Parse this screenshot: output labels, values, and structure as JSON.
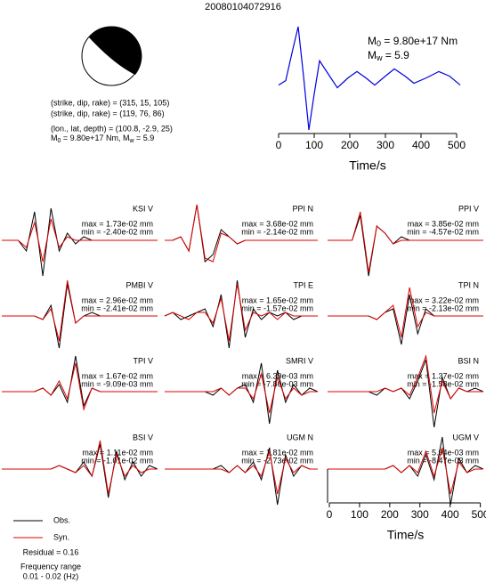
{
  "title": "20080104072916",
  "source_info": {
    "lines": [
      "(strike, dip, rake) = (315, 15, 105)",
      "(strike, dip, rake) = (119, 76, 86)",
      "(lon., lat, depth) = (100.8, -2.9, 25)"
    ],
    "moment_line": {
      "m": "M",
      "m_sub": "0",
      "m_rest": " = 9.80e+17 Nm, ",
      "w": "M",
      "w_sub": "w",
      "w_rest": " = 5.9"
    }
  },
  "moment_box": {
    "m": "M",
    "m_sub": "0",
    "m_rest": " = 9.80e+17 Nm",
    "w": "M",
    "w_sub": "w",
    "w_rest": " = 5.9"
  },
  "residual": "Residual = 0.16",
  "frequency_title": "Frequency range",
  "frequency_range": "0.01 - 0.02 (Hz)",
  "chart_data": [
    {
      "type": "line",
      "x": [
        0,
        20,
        40,
        55,
        70,
        85,
        100,
        115,
        140,
        165,
        195,
        220,
        245,
        270,
        300,
        325,
        355,
        380,
        415,
        450,
        480,
        510
      ],
      "values": [
        0,
        5,
        40,
        65,
        10,
        -50,
        -10,
        27,
        12,
        -3,
        8,
        15,
        8,
        0,
        10,
        18,
        10,
        2,
        8,
        15,
        10,
        0
      ],
      "color": "#0000dd",
      "xlim": [
        0,
        500
      ],
      "ylim": [
        -52,
        67
      ],
      "xticks": [
        0,
        100,
        200,
        300,
        400,
        500
      ],
      "xlabel": "Time/s"
    },
    {
      "type": "waveform",
      "name": "KSI V",
      "max": "max = 1.73e-02 mm",
      "min": "min = -2.40e-02 mm",
      "ylim": [
        -12,
        12
      ],
      "series": [
        {
          "name": "Obs.",
          "color": "#000000",
          "values": [
            0,
            0,
            0,
            -3,
            8,
            -10,
            9,
            -3,
            2,
            -1,
            1,
            0,
            0,
            0,
            0,
            0,
            0,
            0,
            0,
            0
          ]
        },
        {
          "name": "Syn.",
          "color": "#dd0000",
          "values": [
            0,
            0,
            0,
            -2,
            5,
            -6,
            6,
            -2,
            1,
            0,
            0,
            0,
            0,
            0,
            0,
            0,
            0,
            0,
            0,
            0
          ]
        }
      ]
    },
    {
      "type": "waveform",
      "name": "PPI N",
      "max": "max = 3.68e-02 mm",
      "min": "min = -2.14e-02 mm",
      "ylim": [
        -12,
        12
      ],
      "series": [
        {
          "name": "Obs.",
          "color": "#000000",
          "values": [
            0,
            0,
            1,
            -3,
            10,
            -6,
            -4,
            3,
            1,
            -1,
            0,
            0,
            0,
            0,
            0,
            0,
            0,
            0,
            0,
            0
          ]
        },
        {
          "name": "Syn.",
          "color": "#dd0000",
          "values": [
            0,
            0,
            1,
            -3,
            10,
            -5,
            -6,
            2,
            1,
            -1,
            0,
            0,
            0,
            0,
            0,
            0,
            0,
            0,
            0,
            0
          ]
        }
      ]
    },
    {
      "type": "waveform",
      "name": "PPI V",
      "max": "max = 3.85e-02 mm",
      "min": "min = -4.57e-02 mm",
      "ylim": [
        -12,
        12
      ],
      "series": [
        {
          "name": "Obs.",
          "color": "#000000",
          "values": [
            0,
            0,
            0,
            0,
            7,
            -10,
            4,
            2,
            -1,
            1,
            0,
            0,
            0,
            0,
            0,
            0,
            0,
            0,
            0,
            0
          ]
        },
        {
          "name": "Syn.",
          "color": "#dd0000",
          "values": [
            0,
            0,
            0,
            0,
            8,
            -9,
            4,
            2,
            -1,
            0,
            0,
            0,
            0,
            0,
            0,
            0,
            0,
            0,
            0,
            0
          ]
        }
      ]
    },
    {
      "type": "waveform",
      "name": "PMBI V",
      "max": "max = 2.96e-02 mm",
      "min": "min = -2.41e-02 mm",
      "ylim": [
        -12,
        12
      ],
      "series": [
        {
          "name": "Obs.",
          "color": "#000000",
          "values": [
            0,
            0,
            0,
            0,
            0,
            -1,
            3,
            -9,
            9,
            -2,
            0,
            1,
            0,
            0,
            0,
            0,
            0,
            0,
            0,
            0
          ]
        },
        {
          "name": "Syn.",
          "color": "#dd0000",
          "values": [
            0,
            0,
            0,
            0,
            0,
            -1,
            2,
            -7,
            10,
            -2,
            0,
            0,
            0,
            0,
            0,
            0,
            0,
            0,
            0,
            0
          ]
        }
      ]
    },
    {
      "type": "waveform",
      "name": "TPI E",
      "max": "max = 1.65e-02 mm",
      "min": "min = -1.57e-02 mm",
      "ylim": [
        -12,
        12
      ],
      "series": [
        {
          "name": "Obs.",
          "color": "#000000",
          "values": [
            0,
            1,
            -1,
            0,
            1,
            2,
            -3,
            6,
            -9,
            10,
            -6,
            2,
            -1,
            1,
            0,
            1,
            -1,
            0,
            0,
            0
          ]
        },
        {
          "name": "Syn.",
          "color": "#dd0000",
          "values": [
            0,
            1,
            0,
            -1,
            1,
            1,
            -2,
            5,
            -7,
            9,
            -4,
            1,
            0,
            1,
            -1,
            1,
            0,
            0,
            0,
            0
          ]
        }
      ]
    },
    {
      "type": "waveform",
      "name": "TPI N",
      "max": "max = 3.22e-02 mm",
      "min": "min = -2.13e-02 mm",
      "ylim": [
        -12,
        12
      ],
      "series": [
        {
          "name": "Obs.",
          "color": "#000000",
          "values": [
            0,
            0,
            0,
            0,
            0,
            0,
            -1,
            1,
            2,
            -8,
            6,
            -5,
            2,
            0,
            0,
            0,
            0,
            0,
            0,
            0
          ]
        },
        {
          "name": "Syn.",
          "color": "#dd0000",
          "values": [
            0,
            0,
            0,
            0,
            0,
            0,
            -1,
            1,
            3,
            -6,
            8,
            -3,
            1,
            0,
            0,
            0,
            0,
            0,
            0,
            0
          ]
        }
      ]
    },
    {
      "type": "waveform",
      "name": "TPI V",
      "max": "max = 1.67e-02 mm",
      "min": "min = -9.09e-03 mm",
      "ylim": [
        -12,
        12
      ],
      "series": [
        {
          "name": "Obs.",
          "color": "#000000",
          "values": [
            0,
            0,
            0,
            0,
            0,
            1,
            -1,
            2,
            -3,
            10,
            -4,
            1,
            0,
            0,
            0,
            0,
            0,
            0,
            0,
            0
          ]
        },
        {
          "name": "Syn.",
          "color": "#dd0000",
          "values": [
            0,
            0,
            0,
            0,
            0,
            1,
            -1,
            3,
            -2,
            8,
            -5,
            1,
            0,
            0,
            0,
            0,
            0,
            0,
            0,
            0
          ]
        }
      ]
    },
    {
      "type": "waveform",
      "name": "SMRI V",
      "max": "max = 6.39e-03 mm",
      "min": "min = -7.86e-03 mm",
      "ylim": [
        -12,
        12
      ],
      "series": [
        {
          "name": "Obs.",
          "color": "#000000",
          "values": [
            0,
            0,
            0,
            0,
            0,
            0,
            -1,
            1,
            -1,
            1,
            2,
            -3,
            8,
            -9,
            6,
            -3,
            2,
            -1,
            1,
            0
          ]
        },
        {
          "name": "Syn.",
          "color": "#dd0000",
          "values": [
            0,
            0,
            0,
            0,
            0,
            0,
            0,
            1,
            -1,
            1,
            1,
            -2,
            5,
            -6,
            4,
            -2,
            1,
            -1,
            0,
            0
          ]
        }
      ]
    },
    {
      "type": "waveform",
      "name": "BSI N",
      "max": "max = 1.37e-02 mm",
      "min": "min = -1.58e-02 mm",
      "ylim": [
        -12,
        12
      ],
      "series": [
        {
          "name": "Obs.",
          "color": "#000000",
          "values": [
            0,
            0,
            0,
            0,
            0,
            0,
            -1,
            1,
            0,
            1,
            -2,
            3,
            9,
            -10,
            4,
            -2,
            1,
            0,
            1,
            0
          ]
        },
        {
          "name": "Syn.",
          "color": "#dd0000",
          "values": [
            0,
            0,
            0,
            0,
            0,
            0,
            0,
            1,
            0,
            1,
            -1,
            4,
            10,
            -6,
            3,
            -2,
            1,
            0,
            0,
            0
          ]
        }
      ]
    },
    {
      "type": "waveform",
      "name": "BSI V",
      "max": "max = 1.11e-02 mm",
      "min": "min = -1.01e-02 mm",
      "ylim": [
        -12,
        12
      ],
      "series": [
        {
          "name": "Obs.",
          "color": "#000000",
          "values": [
            0,
            0,
            0,
            0,
            0,
            0,
            0,
            1,
            0,
            -1,
            2,
            -2,
            7,
            -8,
            5,
            -3,
            2,
            -2,
            1,
            0
          ]
        },
        {
          "name": "Syn.",
          "color": "#dd0000",
          "values": [
            0,
            0,
            0,
            0,
            0,
            0,
            0,
            1,
            0,
            -1,
            1,
            -2,
            8,
            -7,
            4,
            -2,
            1,
            -1,
            0,
            0
          ]
        }
      ]
    },
    {
      "type": "waveform",
      "name": "UGM N",
      "max": "max = 1.81e-02 mm",
      "min": "min = -2.73e-02 mm",
      "ylim": [
        -12,
        12
      ],
      "series": [
        {
          "name": "Obs.",
          "color": "#000000",
          "values": [
            0,
            0,
            0,
            0,
            0,
            0,
            0,
            1,
            -1,
            1,
            -1,
            2,
            -3,
            6,
            -10,
            4,
            -2,
            1,
            0,
            0
          ]
        },
        {
          "name": "Syn.",
          "color": "#dd0000",
          "values": [
            0,
            0,
            0,
            0,
            0,
            0,
            0,
            0,
            -1,
            1,
            -1,
            1,
            -2,
            5,
            -7,
            3,
            -1,
            1,
            0,
            0
          ]
        }
      ]
    },
    {
      "type": "waveform",
      "name": "UGM V",
      "max": "max = 5.94e-03 mm",
      "min": "min = -8.47e-03 mm",
      "ylim": [
        -12,
        12
      ],
      "xlim": [
        0,
        510
      ],
      "xticks": [
        0,
        100,
        200,
        300,
        400,
        500
      ],
      "xlabel": "Time/s",
      "series": [
        {
          "name": "Obs.",
          "color": "#000000",
          "values": [
            0,
            0,
            0,
            0,
            0,
            0,
            0,
            0,
            1,
            -1,
            1,
            -2,
            4,
            -3,
            9,
            -10,
            3,
            -1,
            1,
            0
          ]
        },
        {
          "name": "Syn.",
          "color": "#dd0000",
          "values": [
            0,
            0,
            0,
            0,
            0,
            0,
            0,
            0,
            1,
            -1,
            1,
            -1,
            5,
            -2,
            6,
            -7,
            2,
            -1,
            0,
            0
          ]
        }
      ]
    }
  ]
}
